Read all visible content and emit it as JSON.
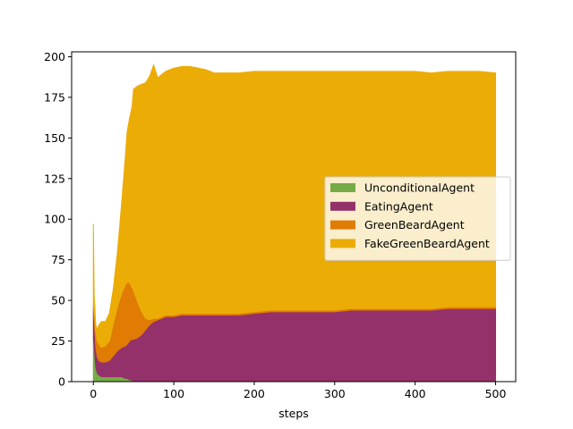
{
  "chart_data": {
    "type": "area",
    "stacked": true,
    "title": "",
    "xlabel": "steps",
    "ylabel": "",
    "xlim": [
      -27,
      525
    ],
    "ylim": [
      0,
      203
    ],
    "xticks": [
      "0",
      "100",
      "200",
      "300",
      "400",
      "500"
    ],
    "yticks": [
      "0",
      "25",
      "50",
      "75",
      "100",
      "125",
      "150",
      "175",
      "200"
    ],
    "legend_position": "center-right",
    "grid": false,
    "x": [
      0,
      1,
      2,
      3,
      5,
      7,
      10,
      15,
      20,
      25,
      30,
      35,
      40,
      42,
      45,
      48,
      50,
      55,
      60,
      65,
      70,
      75,
      80,
      85,
      90,
      95,
      100,
      110,
      120,
      130,
      140,
      150,
      160,
      180,
      200,
      220,
      240,
      260,
      280,
      300,
      320,
      340,
      360,
      380,
      400,
      420,
      440,
      460,
      480,
      500
    ],
    "series": [
      {
        "name": "UnconditionalAgent",
        "color": "#76ab48",
        "values": [
          27,
          22,
          15,
          9,
          5,
          4,
          3,
          3,
          3,
          3,
          3,
          3,
          2,
          2,
          1,
          1,
          0,
          0,
          0,
          0,
          0,
          0,
          0,
          0,
          0,
          0,
          0,
          0,
          0,
          0,
          0,
          0,
          0,
          0,
          0,
          0,
          0,
          0,
          0,
          0,
          0,
          0,
          0,
          0,
          0,
          0,
          0,
          0,
          0,
          0
        ]
      },
      {
        "name": "EatingAgent",
        "color": "#94316a",
        "values": [
          18,
          16,
          15,
          12,
          10,
          9,
          9,
          9,
          10,
          13,
          16,
          18,
          20,
          21,
          24,
          25,
          26,
          27,
          29,
          32,
          35,
          37,
          38,
          39,
          40,
          40,
          40,
          41,
          41,
          41,
          41,
          41,
          41,
          41,
          42,
          43,
          43,
          43,
          43,
          43,
          44,
          44,
          44,
          44,
          44,
          44,
          45,
          45,
          45,
          45
        ]
      },
      {
        "name": "GreenBeardAgent",
        "color": "#e07b04",
        "values": [
          3,
          5,
          8,
          9,
          10,
          10,
          9,
          10,
          12,
          20,
          27,
          33,
          38,
          38,
          36,
          32,
          30,
          22,
          14,
          7,
          3,
          2,
          1,
          1,
          1,
          1,
          1,
          1,
          1,
          1,
          1,
          1,
          1,
          1,
          1,
          1,
          1,
          1,
          1,
          1,
          1,
          1,
          1,
          1,
          1,
          1,
          1,
          1,
          1,
          1
        ]
      },
      {
        "name": "FakeGreenBeardAgent",
        "color": "#ecac06",
        "values": [
          49,
          10,
          6,
          5,
          7,
          12,
          16,
          15,
          17,
          22,
          34,
          55,
          80,
          93,
          101,
          111,
          124,
          133,
          140,
          145,
          150,
          156,
          148,
          149,
          150,
          151,
          152,
          152,
          152,
          151,
          150,
          148,
          148,
          148,
          148,
          147,
          147,
          147,
          147,
          147,
          146,
          146,
          146,
          146,
          146,
          145,
          145,
          145,
          145,
          144
        ]
      }
    ]
  }
}
